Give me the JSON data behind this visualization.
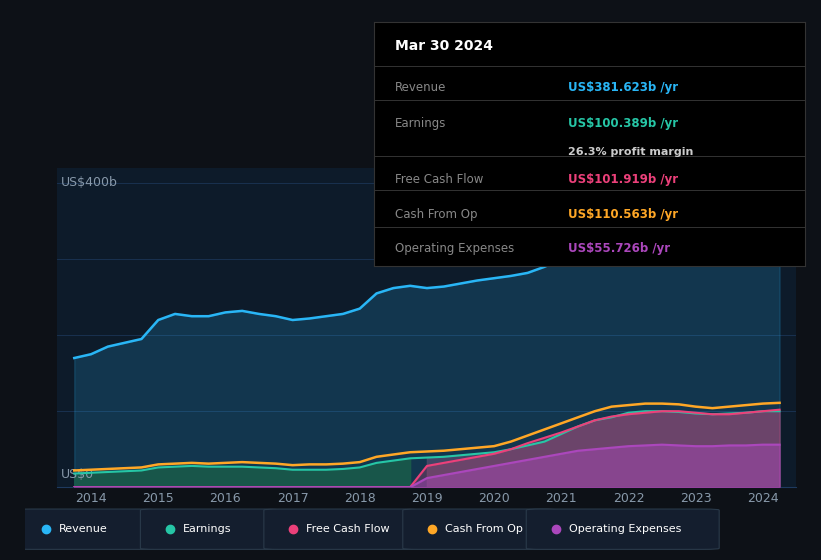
{
  "bg_color": "#0d1117",
  "plot_bg_color": "#0d1b2a",
  "grid_color": "#1e3a5f",
  "text_color": "#8899aa",
  "ylabel_top": "US$400b",
  "ylabel_bottom": "US$0",
  "years": [
    2013.75,
    2014.0,
    2014.25,
    2014.5,
    2014.75,
    2015.0,
    2015.25,
    2015.5,
    2015.75,
    2016.0,
    2016.25,
    2016.5,
    2016.75,
    2017.0,
    2017.25,
    2017.5,
    2017.75,
    2018.0,
    2018.25,
    2018.5,
    2018.75,
    2019.0,
    2019.25,
    2019.5,
    2019.75,
    2020.0,
    2020.25,
    2020.5,
    2020.75,
    2021.0,
    2021.25,
    2021.5,
    2021.75,
    2022.0,
    2022.25,
    2022.5,
    2022.75,
    2023.0,
    2023.25,
    2023.5,
    2023.75,
    2024.0,
    2024.25
  ],
  "revenue": [
    170,
    175,
    185,
    190,
    195,
    220,
    228,
    225,
    225,
    230,
    232,
    228,
    225,
    220,
    222,
    225,
    228,
    235,
    255,
    262,
    265,
    262,
    264,
    268,
    272,
    275,
    278,
    282,
    290,
    300,
    315,
    330,
    345,
    370,
    380,
    385,
    382,
    378,
    375,
    372,
    374,
    378,
    382
  ],
  "earnings": [
    18,
    19,
    20,
    21,
    22,
    26,
    27,
    28,
    27,
    27,
    27,
    26,
    25,
    23,
    23,
    23,
    24,
    26,
    32,
    35,
    38,
    39,
    40,
    42,
    44,
    46,
    50,
    55,
    60,
    70,
    80,
    88,
    92,
    98,
    100,
    100,
    99,
    97,
    96,
    97,
    98,
    100,
    100
  ],
  "free_cash_flow": [
    0,
    0,
    0,
    0,
    0,
    0,
    0,
    0,
    0,
    0,
    0,
    0,
    0,
    0,
    0,
    0,
    0,
    0,
    0,
    0,
    0,
    28,
    32,
    36,
    40,
    44,
    50,
    58,
    65,
    72,
    80,
    88,
    93,
    96,
    98,
    100,
    100,
    98,
    96,
    96,
    98,
    100,
    102
  ],
  "cash_from_op": [
    22,
    23,
    24,
    25,
    26,
    30,
    31,
    32,
    31,
    32,
    33,
    32,
    31,
    29,
    30,
    30,
    31,
    33,
    40,
    43,
    46,
    47,
    48,
    50,
    52,
    54,
    60,
    68,
    76,
    84,
    92,
    100,
    106,
    108,
    110,
    110,
    109,
    106,
    104,
    106,
    108,
    110,
    111
  ],
  "op_expenses": [
    0,
    0,
    0,
    0,
    0,
    0,
    0,
    0,
    0,
    0,
    0,
    0,
    0,
    0,
    0,
    0,
    0,
    0,
    0,
    0,
    0,
    12,
    16,
    20,
    24,
    28,
    32,
    36,
    40,
    44,
    48,
    50,
    52,
    54,
    55,
    56,
    55,
    54,
    54,
    55,
    55,
    56,
    56
  ],
  "revenue_color": "#29b6f6",
  "earnings_color": "#26c6a6",
  "free_cash_flow_color": "#ec407a",
  "cash_from_op_color": "#ffa726",
  "op_expenses_color": "#ab47bc",
  "tooltip_bg": "#000000",
  "tooltip_border": "#333333",
  "tooltip_date": "Mar 30 2024",
  "tooltip_revenue_label": "Revenue",
  "tooltip_revenue_val": "US$381.623b /yr",
  "tooltip_earnings_label": "Earnings",
  "tooltip_earnings_val": "US$100.389b /yr",
  "tooltip_margin": "26.3% profit margin",
  "tooltip_fcf_label": "Free Cash Flow",
  "tooltip_fcf_val": "US$101.919b /yr",
  "tooltip_cfop_label": "Cash From Op",
  "tooltip_cfop_val": "US$110.563b /yr",
  "tooltip_opex_label": "Operating Expenses",
  "tooltip_opex_val": "US$55.726b /yr",
  "xticks": [
    2014,
    2015,
    2016,
    2017,
    2018,
    2019,
    2020,
    2021,
    2022,
    2023,
    2024
  ],
  "ylim": [
    0,
    420
  ],
  "xlim": [
    2013.5,
    2024.5
  ],
  "grid_vals": [
    100,
    200,
    300,
    400
  ],
  "legend_items": [
    {
      "color": "#29b6f6",
      "label": "Revenue"
    },
    {
      "color": "#26c6a6",
      "label": "Earnings"
    },
    {
      "color": "#ec407a",
      "label": "Free Cash Flow"
    },
    {
      "color": "#ffa726",
      "label": "Cash From Op"
    },
    {
      "color": "#ab47bc",
      "label": "Operating Expenses"
    }
  ]
}
